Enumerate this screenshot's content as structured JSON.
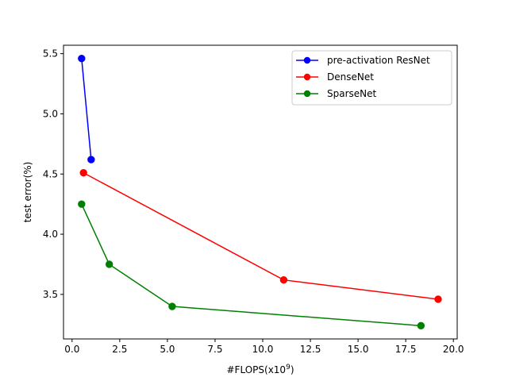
{
  "chart_data": {
    "type": "line",
    "title": "",
    "xlabel": "#FLOPS(x10",
    "xlabel_superscript": "9",
    "xlabel_suffix": ")",
    "ylabel": "test error(%)",
    "xlim": [
      -0.45,
      20.2
    ],
    "ylim": [
      3.13,
      5.57
    ],
    "xticks": [
      0.0,
      2.5,
      5.0,
      7.5,
      10.0,
      12.5,
      15.0,
      17.5,
      20.0
    ],
    "xtick_labels": [
      "0.0",
      "2.5",
      "5.0",
      "7.5",
      "10.0",
      "12.5",
      "15.0",
      "17.5",
      "20.0"
    ],
    "yticks": [
      3.5,
      4.0,
      4.5,
      5.0,
      5.5
    ],
    "ytick_labels": [
      "3.5",
      "4.0",
      "4.5",
      "5.0",
      "5.5"
    ],
    "grid": false,
    "legend_position": "top-right",
    "series": [
      {
        "name": "pre-activation ResNet",
        "color": "#0000ff",
        "x": [
          0.5,
          1.0
        ],
        "y": [
          5.46,
          4.62
        ]
      },
      {
        "name": "DenseNet",
        "color": "#ff0000",
        "x": [
          0.6,
          11.1,
          19.2
        ],
        "y": [
          4.51,
          3.62,
          3.46
        ]
      },
      {
        "name": "SparseNet",
        "color": "#008000",
        "x": [
          0.5,
          1.95,
          5.25,
          18.3
        ],
        "y": [
          4.25,
          3.75,
          3.4,
          3.24
        ]
      }
    ]
  }
}
